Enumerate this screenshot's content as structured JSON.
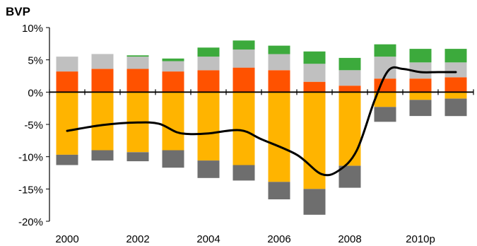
{
  "chart_data": {
    "type": "bar",
    "title": "BVP",
    "xlabel": "",
    "ylabel": "",
    "ylim": [
      -20,
      10
    ],
    "y_ticks": [
      10,
      5,
      0,
      -5,
      -10,
      -15,
      -20
    ],
    "y_tick_labels": [
      "10%",
      "5%",
      "0%",
      "-5%",
      "-10%",
      "-15%",
      "-20%"
    ],
    "x_tick_labels": [
      "2000",
      "2002",
      "2004",
      "2006",
      "2008",
      "2010p"
    ],
    "categories": [
      "2000",
      "2001",
      "2002",
      "2003",
      "2004",
      "2005",
      "2006",
      "2007",
      "2008",
      "2009",
      "2010",
      "2011"
    ],
    "grid": false,
    "legend": "none",
    "stacked": true,
    "series": [
      {
        "color": "#ff5200",
        "values": [
          3.2,
          3.6,
          3.6,
          3.2,
          3.4,
          3.8,
          3.4,
          1.6,
          1.0,
          2.1,
          2.1,
          2.3
        ]
      },
      {
        "color": "#c0c0c0",
        "values": [
          2.3,
          2.3,
          1.9,
          1.6,
          2.1,
          2.8,
          2.5,
          2.8,
          2.4,
          3.4,
          2.5,
          2.3
        ]
      },
      {
        "color": "#3caa3c",
        "values": [
          0.0,
          0.0,
          0.2,
          0.4,
          1.4,
          1.4,
          1.3,
          1.9,
          1.9,
          1.9,
          2.1,
          2.1
        ]
      },
      {
        "color": "#ffb400",
        "values": [
          -9.7,
          -9.0,
          -9.3,
          -9.0,
          -10.6,
          -11.3,
          -13.9,
          -15.0,
          -11.4,
          -2.3,
          -1.2,
          -1.0
        ]
      },
      {
        "color": "#6e6e6e",
        "values": [
          -1.6,
          -1.6,
          -1.4,
          -2.7,
          -2.7,
          -2.4,
          -2.7,
          -4.0,
          -3.4,
          -2.3,
          -2.5,
          -2.7
        ]
      },
      {
        "type": "line",
        "color": "#000000",
        "values": [
          -6.0,
          -5.1,
          -4.7,
          -4.9,
          -6.2,
          -6.5,
          -6.4,
          -5.9,
          -7.3,
          -9.7,
          -12.7,
          -12.1,
          -9.0,
          -1.3,
          3.4,
          3.6,
          3.1,
          3.1,
          3.1
        ],
        "x": [
          0,
          1,
          2,
          2.6,
          3.1,
          3.5,
          4,
          4.9,
          5.5,
          6.5,
          7.2,
          7.7,
          8.2,
          8.7,
          9.1,
          9.5,
          10,
          10.5,
          11
        ]
      }
    ]
  }
}
